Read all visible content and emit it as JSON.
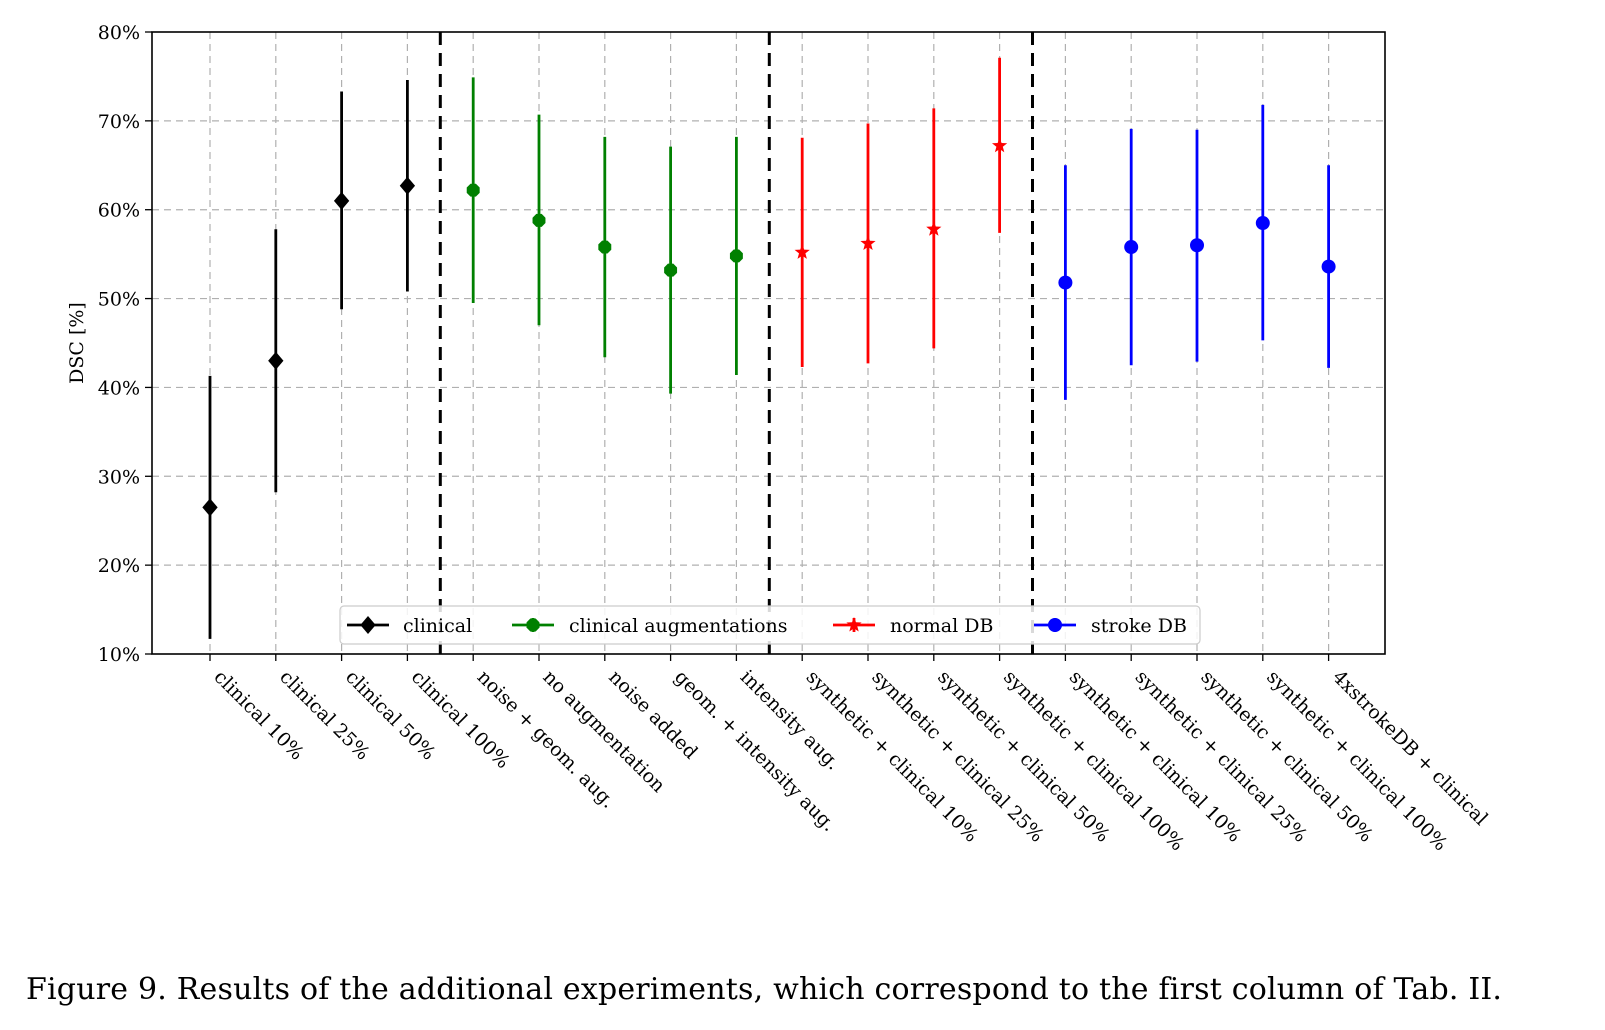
{
  "caption": "Figure 9. Results of the additional experiments, which correspond to the first column of Tab. II.",
  "chart_data": {
    "type": "errorbar",
    "ylabel": "DSC [%]",
    "xlabel": "",
    "ylim": [
      10,
      80
    ],
    "yticks": [
      10,
      20,
      30,
      40,
      50,
      60,
      70,
      80
    ],
    "ytick_labels": [
      "10%",
      "20%",
      "30%",
      "40%",
      "50%",
      "60%",
      "70%",
      "80%"
    ],
    "grid": true,
    "legend_position": "bottom-center",
    "categories": [
      "clinical 10%",
      "clinical 25%",
      "clinical 50%",
      "clinical 100%",
      "noise + geom. aug.",
      "no augmentation",
      "noise added",
      "geom. + intensity aug.",
      "intensity aug.",
      "synthetic + clinical 10%",
      "synthetic + clinical 25%",
      "synthetic + clinical 50%",
      "synthetic + clinical 100%",
      "synthetic + clinical 10%",
      "synthetic + clinical 25%",
      "synthetic + clinical 50%",
      "synthetic + clinical 100%",
      "4xstrokeDB + clinical"
    ],
    "group_separators_after_index": [
      3,
      8,
      12
    ],
    "series": [
      {
        "name": "clinical",
        "color": "#000000",
        "marker": "diamond",
        "x_index": [
          0,
          1,
          2,
          3
        ],
        "mean": [
          26.5,
          43.0,
          61.0,
          62.7
        ],
        "low": [
          11.7,
          28.2,
          48.8,
          50.8
        ],
        "high": [
          41.3,
          57.8,
          73.3,
          74.6
        ]
      },
      {
        "name": "clinical augmentations",
        "color": "#008000",
        "marker": "octagon",
        "x_index": [
          4,
          5,
          6,
          7,
          8
        ],
        "mean": [
          62.2,
          58.8,
          55.8,
          53.2,
          54.8
        ],
        "low": [
          49.5,
          47.0,
          43.4,
          39.3,
          41.4
        ],
        "high": [
          74.9,
          70.7,
          68.2,
          67.1,
          68.2
        ]
      },
      {
        "name": "normal DB",
        "color": "#ff0000",
        "marker": "star",
        "x_index": [
          9,
          10,
          11,
          12
        ],
        "mean": [
          55.2,
          56.2,
          57.8,
          67.2
        ],
        "low": [
          42.3,
          42.7,
          44.4,
          57.4
        ],
        "high": [
          68.1,
          69.7,
          71.4,
          77.1
        ]
      },
      {
        "name": "stroke DB",
        "color": "#0000ff",
        "marker": "circle",
        "x_index": [
          13,
          14,
          15,
          16,
          17
        ],
        "mean": [
          51.8,
          55.8,
          56.0,
          58.5,
          53.6
        ],
        "low": [
          38.6,
          42.5,
          42.9,
          45.3,
          42.2
        ],
        "high": [
          65.0,
          69.1,
          69.0,
          71.8,
          65.0
        ]
      }
    ]
  }
}
